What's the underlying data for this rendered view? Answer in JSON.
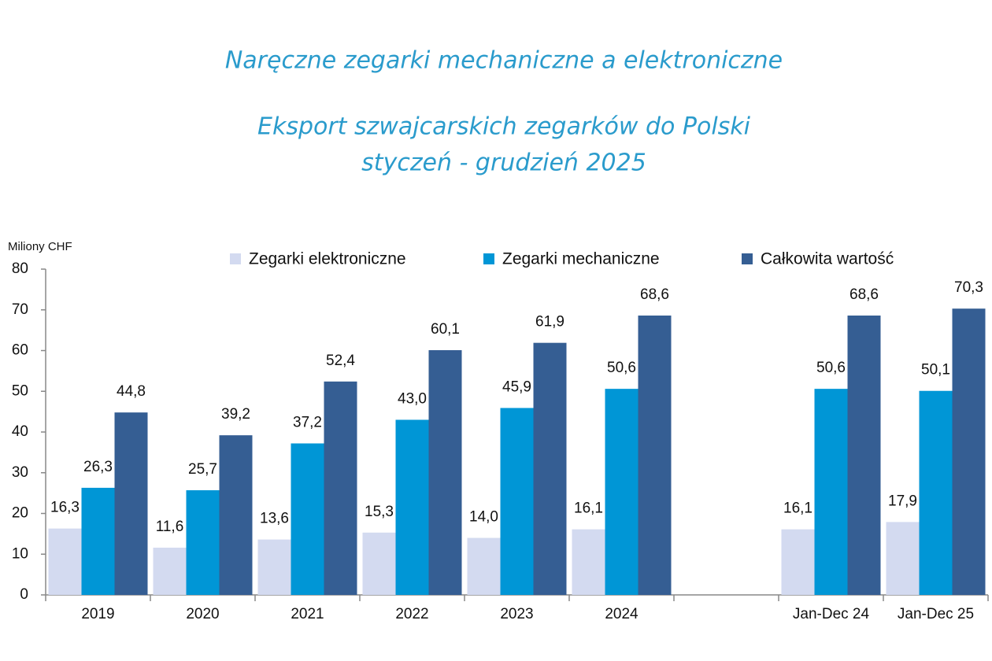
{
  "chart_data": {
    "type": "bar",
    "title": "Naręczne zegarki mechaniczne a elektroniczne",
    "subtitle": [
      "Eksport szwajcarskich zegarków do Polski",
      "styczeń - grudzień 2025"
    ],
    "y_label": "Miliony CHF",
    "categories": [
      "2019",
      "2020",
      "2021",
      "2022",
      "2023",
      "2024",
      null,
      "Jan-Dec 24",
      "Jan-Dec 25"
    ],
    "series": [
      {
        "name": "Zegarki elektroniczne",
        "color": "#d3daf0",
        "values": [
          16.3,
          11.6,
          13.6,
          15.3,
          14.0,
          16.1,
          null,
          16.1,
          17.9
        ],
        "value_labels": [
          "16,3",
          "11,6",
          "13,6",
          "15,3",
          "14,0",
          "16,1",
          null,
          "16,1",
          "17,9"
        ]
      },
      {
        "name": "Zegarki mechaniczne",
        "color": "#0096d6",
        "values": [
          26.3,
          25.7,
          37.2,
          43.0,
          45.9,
          50.6,
          null,
          50.6,
          50.1
        ],
        "value_labels": [
          "26,3",
          "25,7",
          "37,2",
          "43,0",
          "45,9",
          "50,6",
          null,
          "50,6",
          "50,1"
        ]
      },
      {
        "name": "Całkowita wartość",
        "color": "#355e93",
        "values": [
          44.8,
          39.2,
          52.4,
          60.1,
          61.9,
          68.6,
          null,
          68.6,
          70.3
        ],
        "value_labels": [
          "44,8",
          "39,2",
          "52,4",
          "60,1",
          "61,9",
          "68,6",
          null,
          "68,6",
          "70,3"
        ]
      }
    ],
    "ylim": [
      0,
      80
    ],
    "yticks": [
      0,
      10,
      20,
      30,
      40,
      50,
      60,
      70,
      80
    ],
    "grid": false,
    "legend": "top"
  }
}
